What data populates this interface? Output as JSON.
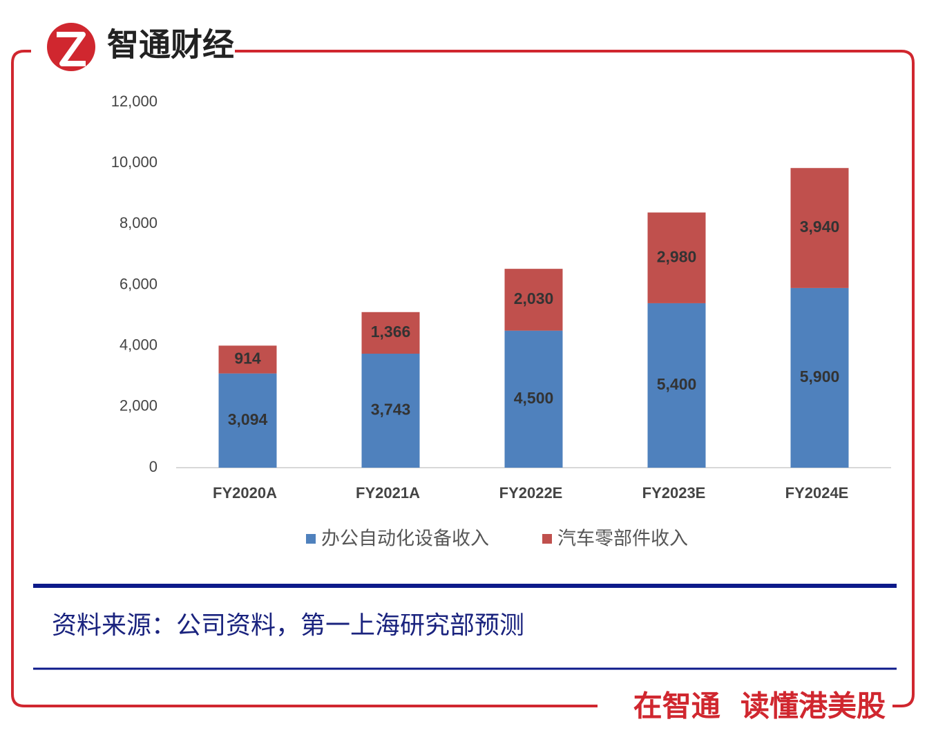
{
  "header": {
    "brand": "智通财经"
  },
  "chart_data": {
    "type": "stacked-bar",
    "categories": [
      "FY2020A",
      "FY2021A",
      "FY2022E",
      "FY2023E",
      "FY2024E"
    ],
    "series": [
      {
        "name": "办公自动化设备收入",
        "color": "#4f81bd",
        "values": [
          3094,
          3743,
          4500,
          5400,
          5900
        ],
        "value_labels": [
          "3,094",
          "3,743",
          "4,500",
          "5,400",
          "5,900"
        ]
      },
      {
        "name": "汽车零部件收入",
        "color": "#c0504d",
        "values": [
          914,
          1366,
          2030,
          2980,
          3940
        ],
        "value_labels": [
          "914",
          "1,366",
          "2,030",
          "2,980",
          "3,940"
        ]
      }
    ],
    "ylim": [
      0,
      12000
    ],
    "yticks": [
      0,
      {
        "value": 2000,
        "label": "2,000"
      },
      {
        "value": 4000,
        "label": "4,000"
      },
      {
        "value": 6000,
        "label": "6,000"
      },
      {
        "value": 8000,
        "label": "8,000"
      },
      {
        "value": 10000,
        "label": "10,000"
      },
      {
        "value": 12000,
        "label": "12,000"
      }
    ],
    "grid": false,
    "legend": "bottom"
  },
  "source": "资料来源：公司资料，第一上海研究部预测",
  "footer": {
    "slogan": "在智通  读懂港美股"
  }
}
